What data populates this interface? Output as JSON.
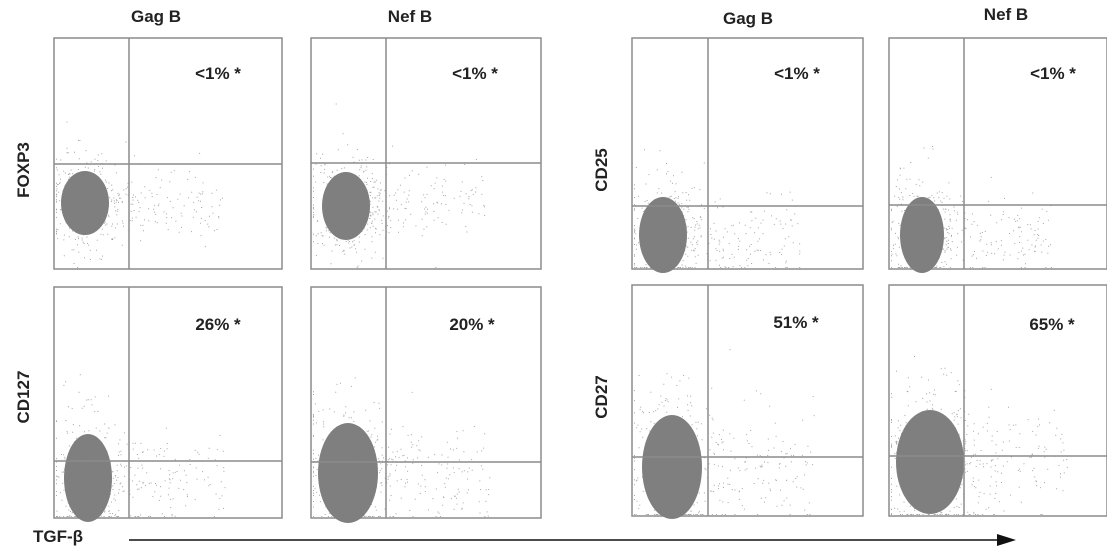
{
  "figure": {
    "x_axis_label": "TGF-β",
    "groups": [
      {
        "columns": [
          "Gag B",
          "Nef B"
        ],
        "rows": [
          {
            "marker": "FOXP3",
            "percents": [
              "<1% *",
              "<1% *"
            ]
          },
          {
            "marker": "CD127",
            "percents": [
              "26% *",
              "20% *"
            ]
          }
        ]
      },
      {
        "columns": [
          "Gag B",
          "Nef B"
        ],
        "rows": [
          {
            "marker": "CD25",
            "percents": [
              "<1% *",
              "<1% *"
            ]
          },
          {
            "marker": "CD27",
            "percents": [
              "51% *",
              "65% *"
            ]
          }
        ]
      }
    ],
    "colors": {
      "events": "#7f7f7f",
      "frame": "#8c8c8c",
      "text": "#222222"
    }
  }
}
